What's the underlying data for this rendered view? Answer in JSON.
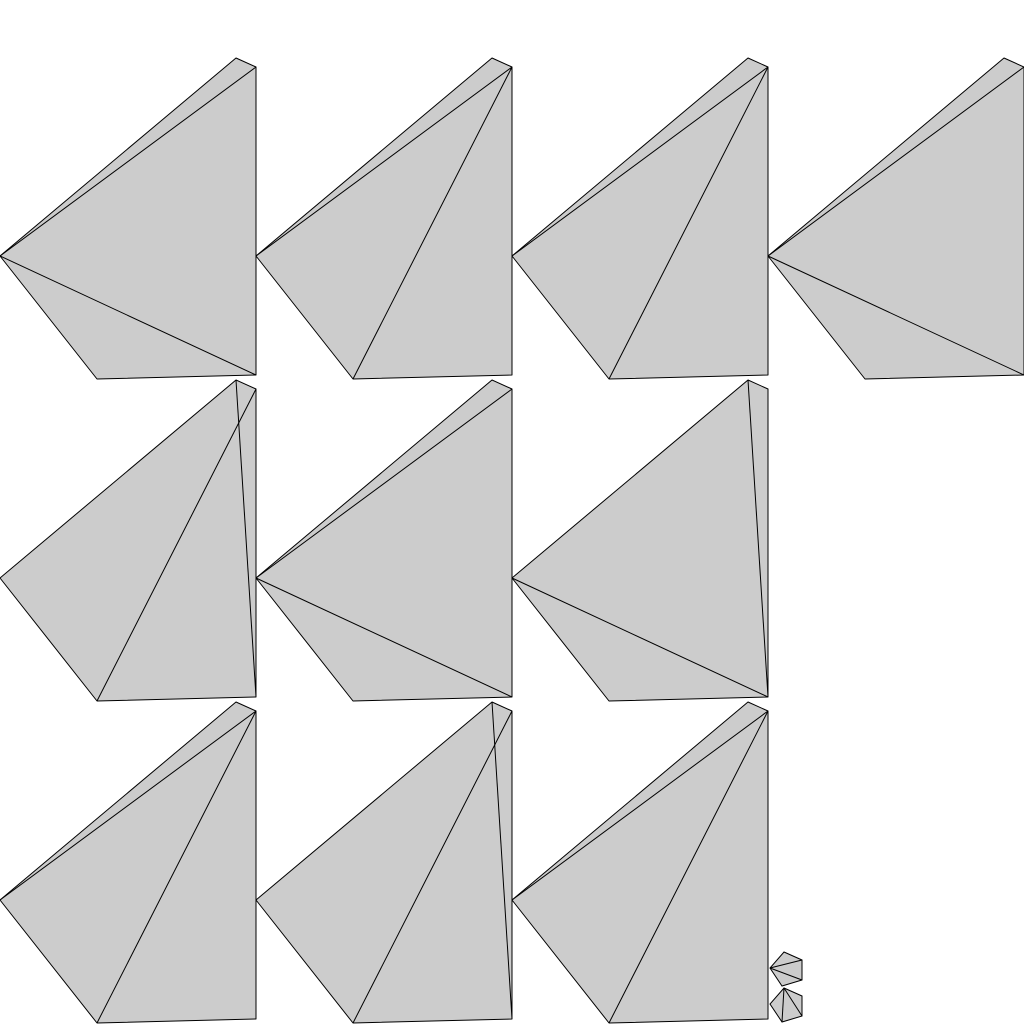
{
  "style": {
    "fill": "#cccccc",
    "stroke": "#000000",
    "background": "#ffffff"
  },
  "shapes": [
    {
      "id": "triangulation-1",
      "diagonals": [
        "top-right-to-left",
        "left-to-bottom-right"
      ]
    },
    {
      "id": "triangulation-2",
      "diagonals": [
        "left-to-top-right",
        "top-right-to-bottom-left"
      ]
    },
    {
      "id": "triangulation-3",
      "diagonals": [
        "left-to-top-right",
        "top-right-to-bottom-left"
      ]
    },
    {
      "id": "triangulation-4",
      "diagonals": [
        "top-right-to-left",
        "left-to-bottom-right"
      ]
    },
    {
      "id": "triangulation-5",
      "diagonals": [
        "top-right-to-bottom-left",
        "top-to-bottom-right"
      ]
    },
    {
      "id": "triangulation-6",
      "diagonals": [
        "left-to-top-right",
        "left-to-bottom-right"
      ]
    },
    {
      "id": "triangulation-7",
      "diagonals": [
        "left-to-bottom-right",
        "top-to-bottom-right"
      ]
    },
    {
      "id": "triangulation-8",
      "diagonals": [
        "left-to-top-right",
        "top-right-to-bottom-left"
      ]
    },
    {
      "id": "triangulation-9",
      "diagonals": [
        "top-right-to-bottom-left",
        "top-to-bottom-right"
      ]
    },
    {
      "id": "triangulation-10",
      "diagonals": [
        "left-to-top-right",
        "top-right-to-bottom-left"
      ]
    }
  ],
  "thumbnails": [
    {
      "id": "thumbnail-1"
    },
    {
      "id": "thumbnail-2"
    }
  ]
}
